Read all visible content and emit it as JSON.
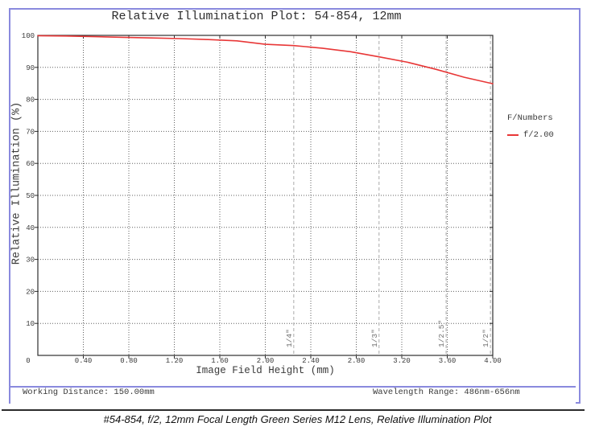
{
  "title": "Relative Illumination Plot: 54-854, 12mm",
  "colors": {
    "frame": "#8a8ade",
    "curve": "#e83737",
    "grid": "#606060",
    "sensor_line": "#b8b8b8",
    "axis": "#2e2e2e",
    "text": "#3a3a3a",
    "rule": "#2b2b2b"
  },
  "legend": {
    "title": "F/Numbers",
    "entries": [
      {
        "label": "f/2.00",
        "color": "#e83737"
      }
    ]
  },
  "footer": {
    "working_distance": "Working Distance: 150.00mm",
    "wavelength_range": "Wavelength Range: 486nm-656nm"
  },
  "caption": "#54-854, f/2, 12mm Focal Length Green Series M12 Lens, Relative Illumination Plot",
  "chart_data": {
    "type": "line",
    "title": "Relative Illumination Plot: 54-854, 12mm",
    "xlabel": "Image Field Height (mm)",
    "ylabel": "Relative Illumination (%)",
    "xlim": [
      0,
      4.0
    ],
    "ylim": [
      0,
      100
    ],
    "grid": true,
    "legend_position": "right",
    "origin_label": "0",
    "x_tick_values": [
      0.4,
      0.8,
      1.2,
      1.6,
      2.0,
      2.4,
      2.8,
      3.2,
      3.6,
      4.0
    ],
    "x_tick_labels": [
      "0.40",
      "0.80",
      "1.20",
      "1.60",
      "2.00",
      "2.40",
      "2.80",
      "3.20",
      "3.60",
      "4.00"
    ],
    "y_tick_values": [
      10,
      20,
      30,
      40,
      50,
      60,
      70,
      80,
      90,
      100
    ],
    "y_tick_labels": [
      "10",
      "20",
      "30",
      "40",
      "50",
      "60",
      "70",
      "80",
      "90",
      "100"
    ],
    "series": [
      {
        "name": "f/2.00",
        "color": "#e83737",
        "x": [
          0.0,
          0.25,
          0.5,
          0.75,
          1.0,
          1.25,
          1.5,
          1.75,
          2.0,
          2.25,
          2.5,
          2.75,
          3.0,
          3.25,
          3.5,
          3.75,
          4.0
        ],
        "y": [
          99.9,
          99.8,
          99.6,
          99.4,
          99.2,
          99.0,
          98.7,
          98.3,
          97.2,
          96.8,
          96.0,
          94.9,
          93.3,
          91.6,
          89.4,
          86.9,
          84.9
        ]
      }
    ],
    "sensor_format_lines": [
      {
        "label": "1/4\"",
        "x": 2.25
      },
      {
        "label": "1/3\"",
        "x": 3.0
      },
      {
        "label": "1/2.5\"",
        "x": 3.59
      },
      {
        "label": "1/2\"",
        "x": 3.98
      }
    ]
  }
}
